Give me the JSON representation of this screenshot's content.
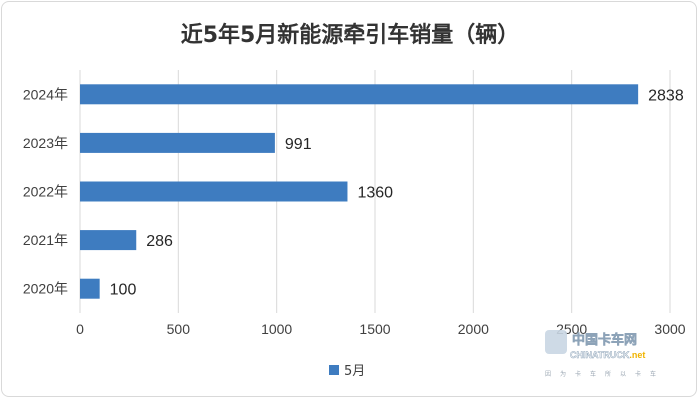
{
  "chart_data": {
    "type": "bar",
    "orientation": "horizontal",
    "title": "近5年5月新能源牵引车销量（辆）",
    "categories": [
      "2024年",
      "2023年",
      "2022年",
      "2021年",
      "2020年"
    ],
    "series": [
      {
        "name": "5月",
        "values": [
          2838,
          991,
          1360,
          286,
          100
        ],
        "color": "#3e7cc0"
      }
    ],
    "xlim": [
      0,
      3000
    ],
    "xticks": [
      0,
      500,
      1000,
      1500,
      2000,
      2500,
      3000
    ],
    "grid": true,
    "legend": "bottom"
  },
  "watermark": {
    "name_cn": "中国卡车网",
    "name_en": "CHINATRUCK",
    "domain_suffix": ".net",
    "tagline": "因为卡车所以卡车"
  }
}
